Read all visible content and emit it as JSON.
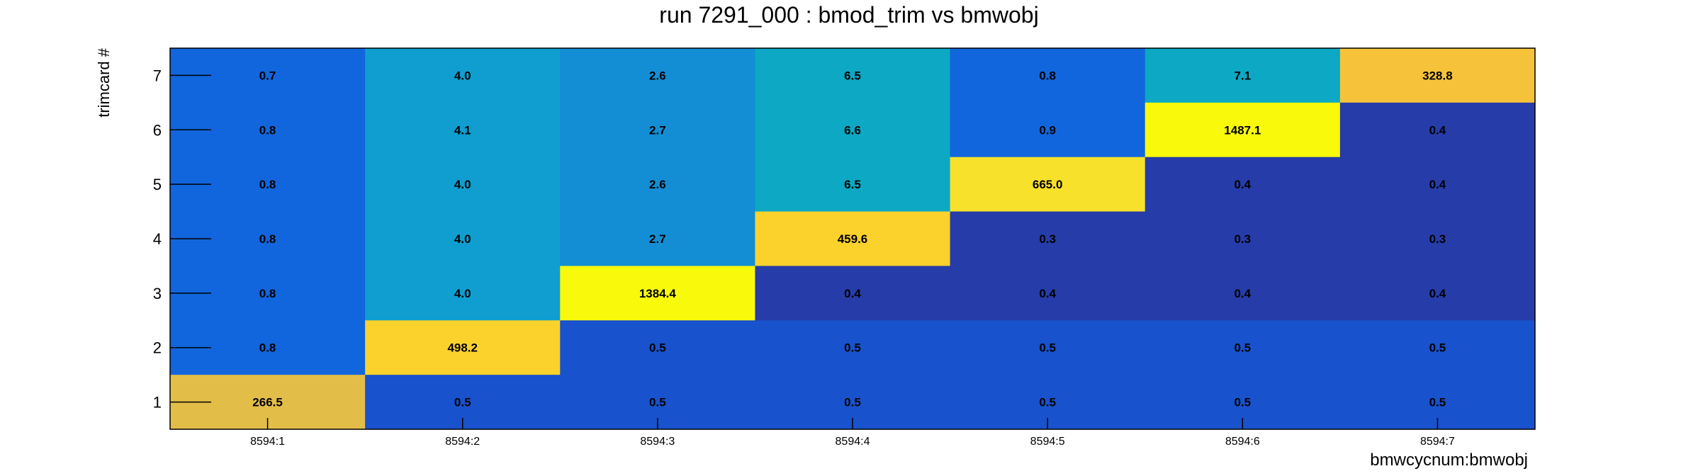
{
  "chart_data": {
    "type": "heatmap",
    "title": "run 7291_000 : bmod_trim vs bmwobj",
    "xlabel": "bmwcycnum:bmwobj",
    "ylabel": "trimcard #",
    "x_categories": [
      "8594:1",
      "8594:2",
      "8594:3",
      "8594:4",
      "8594:5",
      "8594:6",
      "8594:7"
    ],
    "y_categories": [
      "1",
      "2",
      "3",
      "4",
      "5",
      "6",
      "7"
    ],
    "cells": [
      {
        "x": "8594:1",
        "y": "7",
        "value": "0.7",
        "color": "#1166dd"
      },
      {
        "x": "8594:2",
        "y": "7",
        "value": "4.0",
        "color": "#0f9ecf"
      },
      {
        "x": "8594:3",
        "y": "7",
        "value": "2.6",
        "color": "#138ed5"
      },
      {
        "x": "8594:4",
        "y": "7",
        "value": "6.5",
        "color": "#0ca8c4"
      },
      {
        "x": "8594:5",
        "y": "7",
        "value": "0.8",
        "color": "#1166dd"
      },
      {
        "x": "8594:6",
        "y": "7",
        "value": "7.1",
        "color": "#0ca8c4"
      },
      {
        "x": "8594:7",
        "y": "7",
        "value": "328.8",
        "color": "#f5c23a"
      },
      {
        "x": "8594:1",
        "y": "6",
        "value": "0.8",
        "color": "#1166dd"
      },
      {
        "x": "8594:2",
        "y": "6",
        "value": "4.1",
        "color": "#0f9ecf"
      },
      {
        "x": "8594:3",
        "y": "6",
        "value": "2.7",
        "color": "#138ed5"
      },
      {
        "x": "8594:4",
        "y": "6",
        "value": "6.6",
        "color": "#0ca8c4"
      },
      {
        "x": "8594:5",
        "y": "6",
        "value": "0.9",
        "color": "#1166dd"
      },
      {
        "x": "8594:6",
        "y": "6",
        "value": "1487.1",
        "color": "#f9f90c"
      },
      {
        "x": "8594:7",
        "y": "6",
        "value": "0.4",
        "color": "#263ca8"
      },
      {
        "x": "8594:1",
        "y": "5",
        "value": "0.8",
        "color": "#1166dd"
      },
      {
        "x": "8594:2",
        "y": "5",
        "value": "4.0",
        "color": "#0f9ecf"
      },
      {
        "x": "8594:3",
        "y": "5",
        "value": "2.6",
        "color": "#138ed5"
      },
      {
        "x": "8594:4",
        "y": "5",
        "value": "6.5",
        "color": "#0ca8c4"
      },
      {
        "x": "8594:5",
        "y": "5",
        "value": "665.0",
        "color": "#f7e12a"
      },
      {
        "x": "8594:6",
        "y": "5",
        "value": "0.4",
        "color": "#263ca8"
      },
      {
        "x": "8594:7",
        "y": "5",
        "value": "0.4",
        "color": "#263ca8"
      },
      {
        "x": "8594:1",
        "y": "4",
        "value": "0.8",
        "color": "#1166dd"
      },
      {
        "x": "8594:2",
        "y": "4",
        "value": "4.0",
        "color": "#0f9ecf"
      },
      {
        "x": "8594:3",
        "y": "4",
        "value": "2.7",
        "color": "#138ed5"
      },
      {
        "x": "8594:4",
        "y": "4",
        "value": "459.6",
        "color": "#fbd22c"
      },
      {
        "x": "8594:5",
        "y": "4",
        "value": "0.3",
        "color": "#263ca8"
      },
      {
        "x": "8594:6",
        "y": "4",
        "value": "0.3",
        "color": "#263ca8"
      },
      {
        "x": "8594:7",
        "y": "4",
        "value": "0.3",
        "color": "#263ca8"
      },
      {
        "x": "8594:1",
        "y": "3",
        "value": "0.8",
        "color": "#1166dd"
      },
      {
        "x": "8594:2",
        "y": "3",
        "value": "4.0",
        "color": "#0f9ecf"
      },
      {
        "x": "8594:3",
        "y": "3",
        "value": "1384.4",
        "color": "#f9f90c"
      },
      {
        "x": "8594:4",
        "y": "3",
        "value": "0.4",
        "color": "#263ca8"
      },
      {
        "x": "8594:5",
        "y": "3",
        "value": "0.4",
        "color": "#263ca8"
      },
      {
        "x": "8594:6",
        "y": "3",
        "value": "0.4",
        "color": "#263ca8"
      },
      {
        "x": "8594:7",
        "y": "3",
        "value": "0.4",
        "color": "#263ca8"
      },
      {
        "x": "8594:1",
        "y": "2",
        "value": "0.8",
        "color": "#1166dd"
      },
      {
        "x": "8594:2",
        "y": "2",
        "value": "498.2",
        "color": "#fbd22c"
      },
      {
        "x": "8594:3",
        "y": "2",
        "value": "0.5",
        "color": "#1852cc"
      },
      {
        "x": "8594:4",
        "y": "2",
        "value": "0.5",
        "color": "#1852cc"
      },
      {
        "x": "8594:5",
        "y": "2",
        "value": "0.5",
        "color": "#1852cc"
      },
      {
        "x": "8594:6",
        "y": "2",
        "value": "0.5",
        "color": "#1852cc"
      },
      {
        "x": "8594:7",
        "y": "2",
        "value": "0.5",
        "color": "#1852cc"
      },
      {
        "x": "8594:1",
        "y": "1",
        "value": "266.5",
        "color": "#e2be48"
      },
      {
        "x": "8594:2",
        "y": "1",
        "value": "0.5",
        "color": "#1852cc"
      },
      {
        "x": "8594:3",
        "y": "1",
        "value": "0.5",
        "color": "#1852cc"
      },
      {
        "x": "8594:4",
        "y": "1",
        "value": "0.5",
        "color": "#1852cc"
      },
      {
        "x": "8594:5",
        "y": "1",
        "value": "0.5",
        "color": "#1852cc"
      },
      {
        "x": "8594:6",
        "y": "1",
        "value": "0.5",
        "color": "#1852cc"
      },
      {
        "x": "8594:7",
        "y": "1",
        "value": "0.5",
        "color": "#1852cc"
      }
    ]
  }
}
